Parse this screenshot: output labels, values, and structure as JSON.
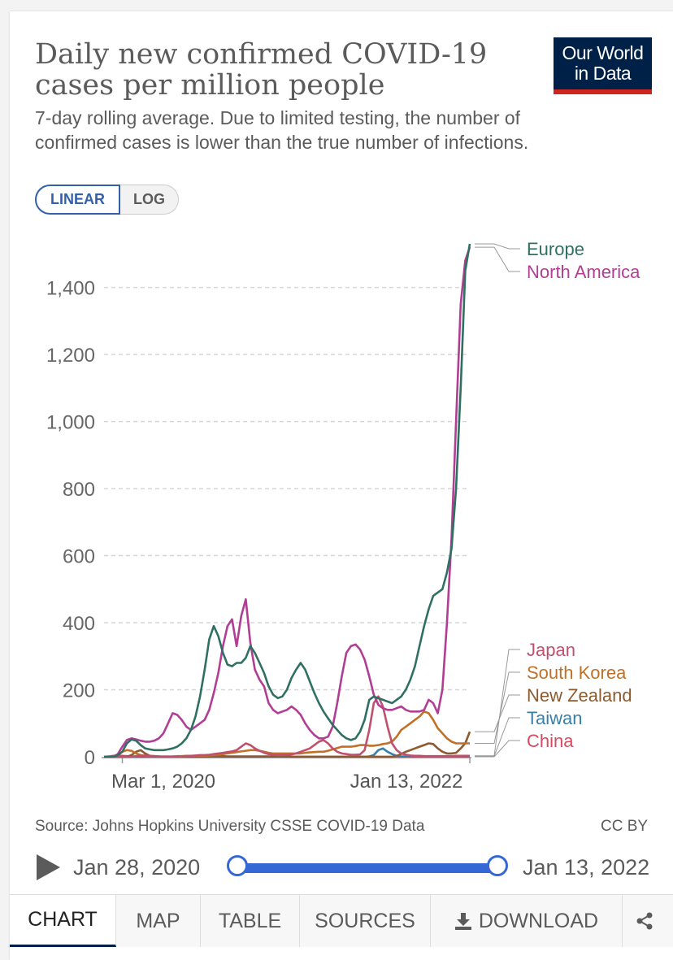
{
  "header": {
    "title": "Daily new confirmed COVID-19 cases per million people",
    "subtitle": "7-day rolling average. Due to limited testing, the number of confirmed cases is lower than the true number of infections.",
    "logo_line1": "Our World",
    "logo_line2": "in Data"
  },
  "scale_toggle": {
    "linear": "LINEAR",
    "log": "LOG",
    "selected": "LINEAR"
  },
  "chart_data": {
    "type": "line",
    "title": "Daily new confirmed COVID-19 cases per million people",
    "xlabel": "",
    "ylabel": "",
    "x_start": "Jan 28, 2020",
    "x_end": "Jan 13, 2022",
    "x_ticks": [
      "Mar 1, 2020",
      "Jan 13, 2022"
    ],
    "y_ticks": [
      0,
      200,
      400,
      600,
      800,
      1000,
      1200,
      1400
    ],
    "y_tick_labels": [
      "0",
      "200",
      "400",
      "600",
      "800",
      "1,000",
      "1,200",
      "1,400"
    ],
    "ylim": [
      0,
      1530
    ],
    "grid": "horizontal dashed",
    "series": [
      {
        "name": "Europe",
        "color": "#2f7062",
        "values": [
          0,
          0,
          0,
          5,
          15,
          40,
          52,
          48,
          35,
          25,
          22,
          20,
          20,
          20,
          22,
          25,
          30,
          40,
          55,
          80,
          120,
          180,
          260,
          350,
          390,
          360,
          310,
          275,
          270,
          280,
          280,
          295,
          330,
          310,
          280,
          250,
          210,
          185,
          175,
          180,
          200,
          235,
          260,
          280,
          260,
          225,
          190,
          160,
          135,
          115,
          95,
          80,
          65,
          55,
          50,
          55,
          75,
          110,
          170,
          180,
          175,
          170,
          165,
          160,
          170,
          180,
          200,
          230,
          270,
          330,
          390,
          440,
          480,
          490,
          500,
          550,
          620,
          800,
          1100,
          1450,
          1530
        ]
      },
      {
        "name": "North America",
        "color": "#b13e93",
        "values": [
          0,
          0,
          0,
          8,
          30,
          50,
          55,
          52,
          48,
          45,
          45,
          48,
          55,
          70,
          100,
          130,
          125,
          110,
          90,
          80,
          90,
          100,
          110,
          140,
          190,
          250,
          330,
          390,
          410,
          330,
          420,
          470,
          340,
          260,
          230,
          210,
          160,
          140,
          130,
          135,
          140,
          150,
          140,
          125,
          100,
          80,
          65,
          55,
          55,
          60,
          90,
          160,
          240,
          310,
          330,
          335,
          320,
          290,
          240,
          185,
          155,
          145,
          140,
          140,
          145,
          150,
          140,
          135,
          135,
          135,
          140,
          170,
          160,
          130,
          200,
          400,
          650,
          1000,
          1350,
          1480,
          1520
        ]
      },
      {
        "name": "Japan",
        "color": "#c0516e",
        "values": [
          0,
          0,
          0,
          0,
          0,
          0,
          0,
          2,
          3,
          4,
          3,
          2,
          1,
          0,
          0,
          0,
          0,
          1,
          2,
          3,
          4,
          5,
          5,
          6,
          8,
          10,
          12,
          14,
          16,
          20,
          30,
          40,
          35,
          25,
          18,
          12,
          8,
          6,
          5,
          5,
          6,
          7,
          10,
          15,
          20,
          25,
          35,
          45,
          50,
          40,
          25,
          15,
          10,
          8,
          6,
          6,
          7,
          20,
          80,
          160,
          180,
          150,
          90,
          40,
          20,
          10,
          6,
          4,
          3,
          3,
          2,
          2,
          2,
          2,
          2,
          2,
          2,
          3,
          3,
          3,
          3
        ]
      },
      {
        "name": "South Korea",
        "color": "#c07028",
        "values": [
          0,
          0,
          0,
          5,
          15,
          20,
          18,
          10,
          5,
          3,
          2,
          2,
          1,
          1,
          1,
          1,
          2,
          2,
          3,
          3,
          3,
          3,
          3,
          4,
          5,
          6,
          8,
          10,
          12,
          14,
          16,
          18,
          20,
          20,
          18,
          15,
          12,
          10,
          10,
          10,
          10,
          10,
          10,
          10,
          12,
          13,
          14,
          15,
          15,
          18,
          22,
          26,
          30,
          30,
          30,
          32,
          35,
          35,
          33,
          33,
          35,
          38,
          40,
          45,
          60,
          80,
          90,
          100,
          110,
          120,
          135,
          130,
          110,
          85,
          70,
          55,
          45,
          40,
          40,
          40,
          40
        ]
      },
      {
        "name": "New Zealand",
        "color": "#8c5a2e",
        "values": [
          0,
          0,
          0,
          0,
          0,
          0,
          5,
          15,
          20,
          10,
          3,
          1,
          0,
          0,
          0,
          0,
          0,
          0,
          0,
          0,
          0,
          0,
          0,
          1,
          2,
          2,
          2,
          1,
          1,
          1,
          1,
          1,
          1,
          1,
          1,
          1,
          1,
          1,
          1,
          1,
          1,
          0,
          0,
          0,
          0,
          0,
          0,
          0,
          0,
          0,
          0,
          0,
          0,
          0,
          0,
          0,
          0,
          0,
          0,
          0,
          0,
          0,
          0,
          0,
          3,
          8,
          15,
          20,
          25,
          30,
          35,
          40,
          38,
          25,
          15,
          10,
          10,
          12,
          25,
          40,
          75
        ]
      },
      {
        "name": "Taiwan",
        "color": "#3a7ea6",
        "values": [
          0,
          0,
          0,
          0,
          0,
          0,
          0,
          0,
          0,
          0,
          0,
          0,
          0,
          0,
          0,
          0,
          0,
          0,
          0,
          0,
          0,
          0,
          0,
          0,
          0,
          0,
          0,
          0,
          0,
          0,
          0,
          0,
          0,
          0,
          0,
          0,
          0,
          0,
          0,
          0,
          0,
          0,
          0,
          0,
          0,
          0,
          0,
          0,
          0,
          0,
          0,
          0,
          0,
          0,
          0,
          0,
          0,
          0,
          1,
          5,
          20,
          25,
          15,
          8,
          3,
          1,
          1,
          1,
          1,
          1,
          1,
          1,
          1,
          1,
          1,
          1,
          1,
          1,
          1,
          1,
          2
        ]
      },
      {
        "name": "China",
        "color": "#d84a5f",
        "values": [
          0,
          1,
          3,
          4,
          3,
          2,
          1,
          1,
          0,
          0,
          0,
          0,
          0,
          0,
          0,
          0,
          0,
          0,
          0,
          0,
          0,
          0,
          0,
          0,
          0,
          0,
          0,
          0,
          0,
          0,
          0,
          0,
          0,
          0,
          0,
          0,
          0,
          0,
          0,
          0,
          0,
          0,
          0,
          0,
          0,
          0,
          0,
          0,
          0,
          0,
          0,
          0,
          0,
          0,
          0,
          0,
          0,
          0,
          0,
          0,
          0,
          0,
          0,
          0,
          0,
          0,
          0,
          0,
          0,
          0,
          0,
          0,
          0,
          0,
          0,
          0,
          0,
          0,
          0,
          0,
          0
        ]
      }
    ]
  },
  "source": "Source: Johns Hopkins University CSSE COVID-19 Data",
  "license": "CC BY",
  "timeline": {
    "start_label": "Jan 28, 2020",
    "end_label": "Jan 13, 2022",
    "start_fraction": 0,
    "end_fraction": 1
  },
  "tabs": [
    {
      "label": "CHART",
      "active": true
    },
    {
      "label": "MAP",
      "active": false
    },
    {
      "label": "TABLE",
      "active": false
    },
    {
      "label": "SOURCES",
      "active": false
    },
    {
      "label": "DOWNLOAD",
      "active": false
    }
  ],
  "icons": {
    "download": "download-icon",
    "share": "share-icon",
    "play": "play-icon"
  }
}
